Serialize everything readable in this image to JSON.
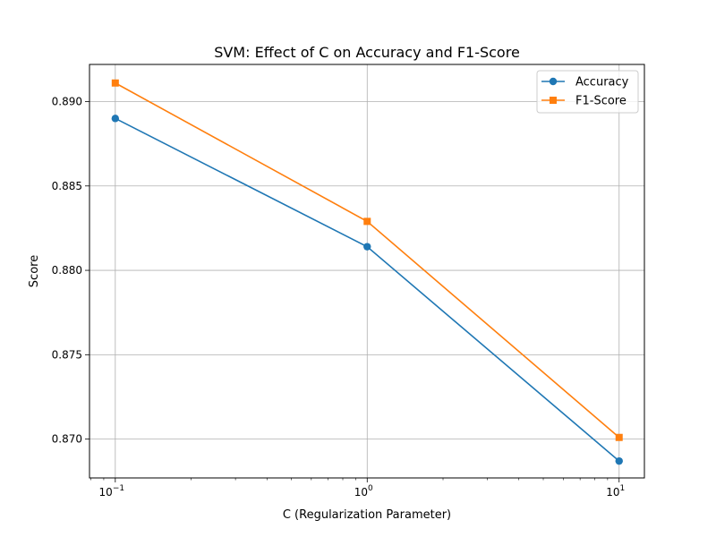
{
  "chart_data": {
    "type": "line",
    "title": "SVM: Effect of C on Accuracy and F1-Score",
    "xlabel": "C (Regularization Parameter)",
    "ylabel": "Score",
    "x_scale": "log",
    "x": [
      0.1,
      1,
      10
    ],
    "xlim": [
      0.079,
      12.6
    ],
    "ylim": [
      0.8677,
      0.8922
    ],
    "x_ticks": [
      {
        "value": 0.1,
        "base": "10",
        "exp": "−1"
      },
      {
        "value": 1,
        "base": "10",
        "exp": "0"
      },
      {
        "value": 10,
        "base": "10",
        "exp": "1"
      }
    ],
    "y_ticks": [
      {
        "value": 0.87,
        "label": "0.870"
      },
      {
        "value": 0.875,
        "label": "0.875"
      },
      {
        "value": 0.88,
        "label": "0.880"
      },
      {
        "value": 0.885,
        "label": "0.885"
      },
      {
        "value": 0.89,
        "label": "0.890"
      }
    ],
    "grid": true,
    "legend_position": "top-right",
    "series": [
      {
        "name": "Accuracy",
        "marker": "circle",
        "color": "#1f77b4",
        "values": [
          0.889,
          0.8814,
          0.8687
        ]
      },
      {
        "name": "F1-Score",
        "marker": "square",
        "color": "#ff7f0e",
        "values": [
          0.8911,
          0.8829,
          0.8701
        ]
      }
    ]
  }
}
